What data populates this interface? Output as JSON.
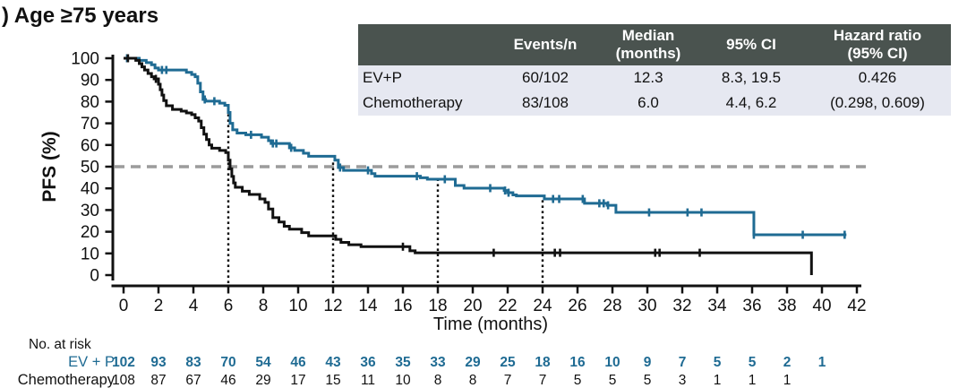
{
  "title": ") Age ≥75 years",
  "colors": {
    "ev_p": "#1f6b93",
    "chemo": "#111111",
    "axis": "#111111",
    "dashed_ref": "#9c9c9c",
    "table_header_bg": "#4a534f",
    "table_row_bg": "#e6e8f1"
  },
  "stats_table": {
    "headers": [
      "",
      "Events/n",
      "Median\n(months)",
      "95% CI",
      "Hazard ratio\n(95% CI)"
    ],
    "rows": [
      {
        "label": "EV+P",
        "events_n": "60/102",
        "median": "12.3",
        "ci": "8.3, 19.5",
        "hr": "0.426"
      },
      {
        "label": "Chemotherapy",
        "events_n": "83/108",
        "median": "6.0",
        "ci": "4.4, 6.2",
        "hr": "(0.298, 0.609)"
      }
    ]
  },
  "chart_data": {
    "type": "line",
    "subtype": "kaplan-meier-step",
    "xlabel": "Time (months)",
    "ylabel": "PFS (%)",
    "xlim": [
      0,
      42
    ],
    "ylim": [
      0,
      100
    ],
    "x_ticks": [
      0,
      2,
      4,
      6,
      8,
      10,
      12,
      14,
      16,
      18,
      20,
      22,
      24,
      26,
      28,
      30,
      32,
      34,
      36,
      38,
      40,
      42
    ],
    "y_ticks": [
      0,
      10,
      20,
      30,
      40,
      50,
      60,
      70,
      80,
      90,
      100
    ],
    "grid": false,
    "legend_position": "none",
    "reference_lines": {
      "horizontal_dashed_y": 50,
      "vertical_dotted": [
        {
          "x": 6,
          "top": 75
        },
        {
          "x": 12,
          "top": 53
        },
        {
          "x": 18,
          "top": 44.2
        },
        {
          "x": 24,
          "top": 36.4
        }
      ]
    },
    "series": [
      {
        "name": "EV+P",
        "color": "#1f6b93",
        "end_time": 41.4,
        "steps": [
          [
            0,
            100
          ],
          [
            0.9,
            99
          ],
          [
            1.3,
            98
          ],
          [
            1.6,
            97
          ],
          [
            1.8,
            95.5
          ],
          [
            2.0,
            94.6
          ],
          [
            3.6,
            93.5
          ],
          [
            3.9,
            92.5
          ],
          [
            4.1,
            91.5
          ],
          [
            4.25,
            88.5
          ],
          [
            4.4,
            84.5
          ],
          [
            4.55,
            81
          ],
          [
            4.7,
            80.2
          ],
          [
            5.5,
            79.3
          ],
          [
            5.8,
            78.3
          ],
          [
            6.0,
            75
          ],
          [
            6.1,
            70
          ],
          [
            6.25,
            67
          ],
          [
            6.5,
            65.5
          ],
          [
            7.0,
            64.7
          ],
          [
            7.9,
            63.6
          ],
          [
            8.3,
            62
          ],
          [
            8.45,
            60.7
          ],
          [
            9.5,
            58.7
          ],
          [
            9.8,
            57.5
          ],
          [
            10.3,
            56.2
          ],
          [
            10.6,
            54.8
          ],
          [
            12.1,
            53
          ],
          [
            12.3,
            49.6
          ],
          [
            12.6,
            48.3
          ],
          [
            14.2,
            46.8
          ],
          [
            14.4,
            45.6
          ],
          [
            17.0,
            44.9
          ],
          [
            17.4,
            44.2
          ],
          [
            19.0,
            41.3
          ],
          [
            19.5,
            40.1
          ],
          [
            21.8,
            39
          ],
          [
            22.0,
            38
          ],
          [
            22.3,
            37
          ],
          [
            22.5,
            36.5
          ],
          [
            24.1,
            35.1
          ],
          [
            26.4,
            33.1
          ],
          [
            27.7,
            32.2
          ],
          [
            28.2,
            28.9
          ],
          [
            36.1,
            18.6
          ]
        ],
        "censor_times": [
          0.2,
          2.2,
          2.45,
          4.65,
          5.2,
          7.3,
          8.55,
          8.75,
          9.6,
          12.4,
          14.0,
          16.8,
          18.4,
          21.0,
          21.85,
          22.05,
          24.6,
          24.95,
          26.3,
          27.25,
          27.5,
          27.75,
          30.1,
          32.3,
          33.1,
          36.1,
          38.9,
          41.3
        ]
      },
      {
        "name": "Chemotherapy",
        "color": "#111111",
        "end_time": null,
        "steps": [
          [
            0,
            100
          ],
          [
            0.7,
            99
          ],
          [
            0.9,
            97.5
          ],
          [
            1.05,
            96
          ],
          [
            1.2,
            94.6
          ],
          [
            1.4,
            93
          ],
          [
            1.6,
            91.5
          ],
          [
            1.75,
            90.5
          ],
          [
            2.0,
            88
          ],
          [
            2.1,
            85.5
          ],
          [
            2.2,
            83
          ],
          [
            2.3,
            80.5
          ],
          [
            2.45,
            78.1
          ],
          [
            2.8,
            76.4
          ],
          [
            3.3,
            75.6
          ],
          [
            3.6,
            74.8
          ],
          [
            3.9,
            74
          ],
          [
            4.1,
            72.5
          ],
          [
            4.3,
            71
          ],
          [
            4.45,
            68
          ],
          [
            4.6,
            65
          ],
          [
            4.75,
            62.5
          ],
          [
            4.9,
            60
          ],
          [
            5.05,
            58.5
          ],
          [
            5.5,
            57.5
          ],
          [
            5.85,
            56.5
          ],
          [
            6.0,
            53
          ],
          [
            6.1,
            49
          ],
          [
            6.2,
            45.5
          ],
          [
            6.3,
            42.5
          ],
          [
            6.4,
            40.5
          ],
          [
            6.8,
            38.7
          ],
          [
            7.2,
            37.2
          ],
          [
            7.8,
            35.1
          ],
          [
            8.1,
            33.5
          ],
          [
            8.3,
            30.5
          ],
          [
            8.55,
            26.5
          ],
          [
            8.9,
            24.5
          ],
          [
            9.2,
            22.5
          ],
          [
            9.5,
            21.2
          ],
          [
            10.2,
            19.6
          ],
          [
            10.6,
            18.1
          ],
          [
            12.15,
            16.5
          ],
          [
            12.45,
            15.1
          ],
          [
            12.9,
            14
          ],
          [
            13.6,
            13.1
          ],
          [
            16.4,
            11.2
          ],
          [
            16.7,
            10.3
          ],
          [
            39.4,
            0
          ]
        ],
        "censor_times": [
          0.25,
          1.85,
          16.0,
          21.2,
          24.7,
          25.0,
          30.45,
          30.7,
          33.0
        ]
      }
    ]
  },
  "at_risk": {
    "label": "No. at risk",
    "rows": [
      {
        "label": "EV + P",
        "color": "#1f6b93",
        "bold": true,
        "times": [
          0,
          2,
          4,
          6,
          8,
          10,
          12,
          14,
          16,
          18,
          20,
          22,
          24,
          26,
          28,
          30,
          32,
          34,
          36,
          38,
          40
        ],
        "values": [
          102,
          93,
          83,
          70,
          54,
          46,
          43,
          36,
          35,
          33,
          29,
          25,
          18,
          16,
          10,
          9,
          7,
          5,
          5,
          2,
          1
        ]
      },
      {
        "label": "Chemotherapy",
        "color": "#111111",
        "bold": false,
        "times": [
          0,
          2,
          4,
          6,
          8,
          10,
          12,
          14,
          16,
          18,
          20,
          22,
          24,
          26,
          28,
          30,
          32,
          34,
          36,
          38
        ],
        "values": [
          108,
          87,
          67,
          46,
          29,
          17,
          15,
          11,
          10,
          8,
          8,
          7,
          7,
          5,
          5,
          5,
          3,
          1,
          1,
          1
        ]
      }
    ]
  }
}
